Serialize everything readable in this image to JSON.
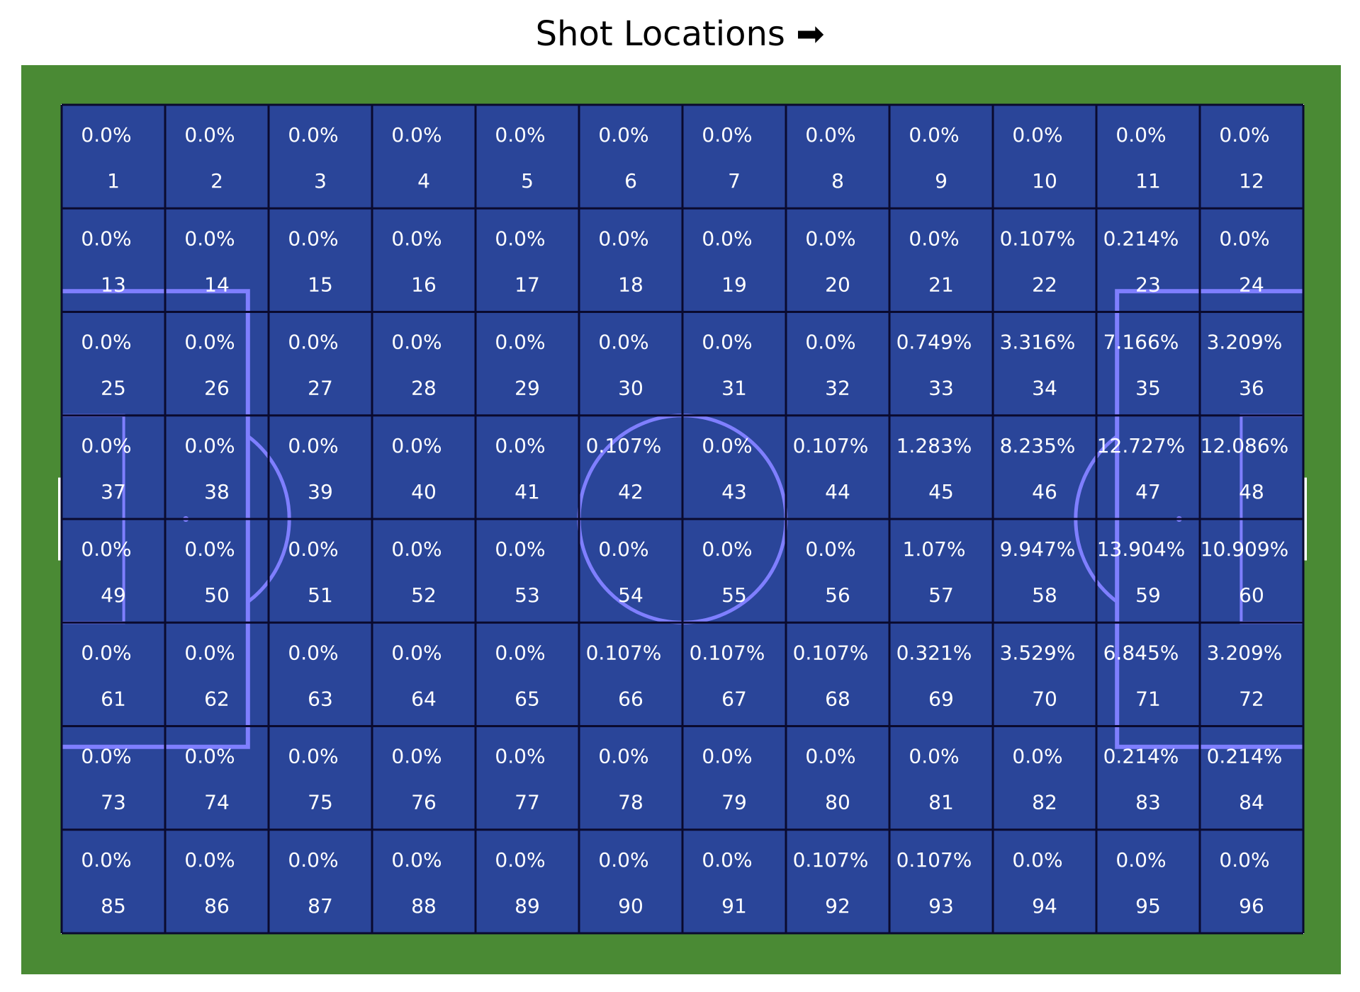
{
  "chart_data": {
    "type": "heatmap",
    "title": "Shot Locations ➡",
    "grid": {
      "rows": 8,
      "cols": 12
    },
    "zones": [
      1,
      2,
      3,
      4,
      5,
      6,
      7,
      8,
      9,
      10,
      11,
      12,
      13,
      14,
      15,
      16,
      17,
      18,
      19,
      20,
      21,
      22,
      23,
      24,
      25,
      26,
      27,
      28,
      29,
      30,
      31,
      32,
      33,
      34,
      35,
      36,
      37,
      38,
      39,
      40,
      41,
      42,
      43,
      44,
      45,
      46,
      47,
      48,
      49,
      50,
      51,
      52,
      53,
      54,
      55,
      56,
      57,
      58,
      59,
      60,
      61,
      62,
      63,
      64,
      65,
      66,
      67,
      68,
      69,
      70,
      71,
      72,
      73,
      74,
      75,
      76,
      77,
      78,
      79,
      80,
      81,
      82,
      83,
      84,
      85,
      86,
      87,
      88,
      89,
      90,
      91,
      92,
      93,
      94,
      95,
      96
    ],
    "labels": [
      "0.0%",
      "0.0%",
      "0.0%",
      "0.0%",
      "0.0%",
      "0.0%",
      "0.0%",
      "0.0%",
      "0.0%",
      "0.0%",
      "0.0%",
      "0.0%",
      "0.0%",
      "0.0%",
      "0.0%",
      "0.0%",
      "0.0%",
      "0.0%",
      "0.0%",
      "0.0%",
      "0.0%",
      "0.107%",
      "0.214%",
      "0.0%",
      "0.0%",
      "0.0%",
      "0.0%",
      "0.0%",
      "0.0%",
      "0.0%",
      "0.0%",
      "0.0%",
      "0.749%",
      "3.316%",
      "7.166%",
      "3.209%",
      "0.0%",
      "0.0%",
      "0.0%",
      "0.0%",
      "0.0%",
      "0.107%",
      "0.0%",
      "0.107%",
      "1.283%",
      "8.235%",
      "12.727%",
      "12.086%",
      "0.0%",
      "0.0%",
      "0.0%",
      "0.0%",
      "0.0%",
      "0.0%",
      "0.0%",
      "0.0%",
      "1.07%",
      "9.947%",
      "13.904%",
      "10.909%",
      "0.0%",
      "0.0%",
      "0.0%",
      "0.0%",
      "0.0%",
      "0.107%",
      "0.107%",
      "0.107%",
      "0.321%",
      "3.529%",
      "6.845%",
      "3.209%",
      "0.0%",
      "0.0%",
      "0.0%",
      "0.0%",
      "0.0%",
      "0.0%",
      "0.0%",
      "0.0%",
      "0.0%",
      "0.0%",
      "0.214%",
      "0.214%",
      "0.0%",
      "0.0%",
      "0.0%",
      "0.0%",
      "0.0%",
      "0.0%",
      "0.0%",
      "0.107%",
      "0.107%",
      "0.0%",
      "0.0%",
      "0.0%"
    ],
    "colors": {
      "grass": "#4a8a34",
      "cell_fill": "#2a4599",
      "cell_border": "#0a0a2e",
      "pitch_lines": "#7f7fff",
      "outer_line": "#ffffff",
      "text": "#ffffff"
    }
  }
}
